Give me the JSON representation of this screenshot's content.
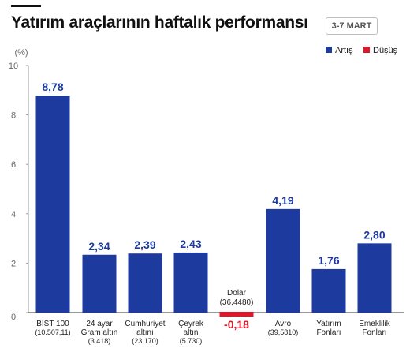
{
  "header": {
    "title": "Yatırım araçlarının haftalık performansı",
    "date_badge": "3-7 MART"
  },
  "colors": {
    "increase": "#1d3a9f",
    "decrease": "#e0162b",
    "axis_text": "#666666",
    "grid": "#333333"
  },
  "chart_data": {
    "type": "bar",
    "title": "Yatırım araçlarının haftalık performansı",
    "ylabel": "(%)",
    "xlabel": "",
    "ylim": [
      0,
      10
    ],
    "yticks": [
      0,
      2,
      4,
      6,
      8,
      10
    ],
    "grid": false,
    "legend_position": "top-right",
    "legend": [
      {
        "name": "Artış",
        "color": "#1d3a9f"
      },
      {
        "name": "Düşüş",
        "color": "#e0162b"
      }
    ],
    "categories": [
      [
        "BIST 100",
        "(10.507,11)"
      ],
      [
        "24 ayar",
        "Gram altın",
        "(3.418)"
      ],
      [
        "Cumhuriyet",
        "altını",
        "(23.170)"
      ],
      [
        "Çeyrek",
        "altın",
        "(5.730)"
      ],
      [
        "Dolar",
        "(36,4480)"
      ],
      [
        "Avro",
        "(39,5810)"
      ],
      [
        "Yatırım",
        "Fonları"
      ],
      [
        "Emeklilik",
        "Fonları"
      ]
    ],
    "values": [
      8.78,
      2.34,
      2.39,
      2.43,
      -0.18,
      4.19,
      1.76,
      2.8
    ],
    "value_labels": [
      "8,78",
      "2,34",
      "2,39",
      "2,43",
      "-0,18",
      "4,19",
      "1,76",
      "2,80"
    ]
  }
}
